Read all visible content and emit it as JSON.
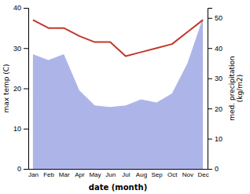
{
  "chart_data": {
    "type": "line",
    "categories": [
      "Jan",
      "Feb",
      "Mar",
      "Apr",
      "May",
      "Jun",
      "Jul",
      "Aug",
      "Sep",
      "Oct",
      "Nov",
      "Dec"
    ],
    "xlabel": "date (month)",
    "ylabel": "max temp (C)",
    "y2label": "med. precipitation\n(kg/m2)",
    "ylim": [
      0,
      40
    ],
    "yticks": [
      0,
      10,
      20,
      30,
      40
    ],
    "y2lim": [
      0,
      53.33
    ],
    "y2ticks": [
      0,
      10,
      20,
      30,
      40,
      50
    ],
    "series": [
      {
        "type": "area",
        "axis": "y2",
        "color": "#adb5e8",
        "values": [
          38,
          36,
          38,
          26,
          21,
          20.5,
          21,
          23,
          22,
          25,
          35,
          50
        ]
      },
      {
        "type": "line",
        "color": "#c0392b",
        "values": [
          37,
          35,
          35,
          33,
          31.5,
          31.5,
          28,
          29,
          30,
          31,
          34,
          37
        ]
      }
    ]
  }
}
